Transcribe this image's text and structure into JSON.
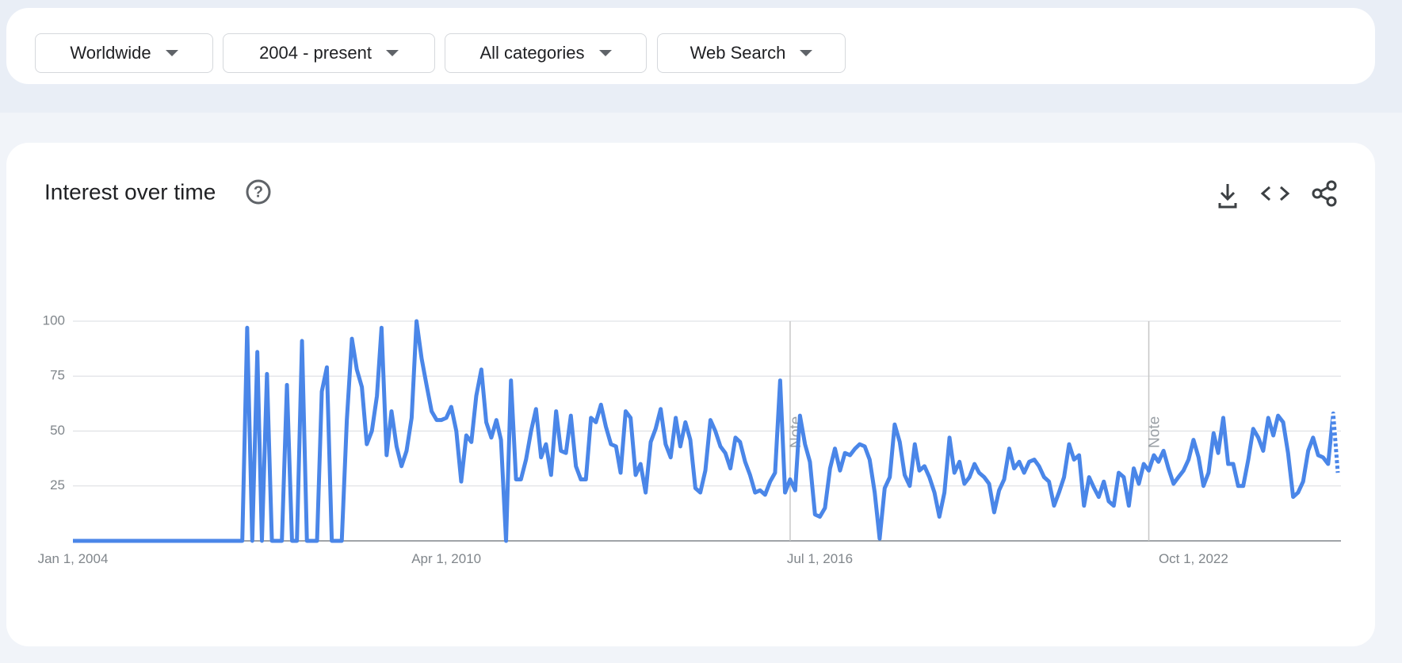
{
  "filters": [
    "Worldwide",
    "2004 - present",
    "All categories",
    "Web Search"
  ],
  "chart_data": {
    "type": "line",
    "title": "Interest over time",
    "color": "#4a86e8",
    "x": [
      "2004-01-01",
      "2004-02-01",
      "2004-03-01",
      "2004-04-01",
      "2004-05-01",
      "2004-06-01",
      "2004-07-01",
      "2004-08-01",
      "2004-09-01",
      "2004-10-01",
      "2004-11-01",
      "2004-12-01",
      "2005-01-01",
      "2005-02-01",
      "2005-03-01",
      "2005-04-01",
      "2005-05-01",
      "2005-06-01",
      "2005-07-01",
      "2005-08-01",
      "2005-09-01",
      "2005-10-01",
      "2005-11-01",
      "2005-12-01",
      "2006-01-01",
      "2006-02-01",
      "2006-03-01",
      "2006-04-01",
      "2006-05-01",
      "2006-06-01",
      "2006-07-01",
      "2006-08-01",
      "2006-09-01",
      "2006-10-01",
      "2006-11-01",
      "2006-12-01",
      "2007-01-01",
      "2007-02-01",
      "2007-03-01",
      "2007-04-01",
      "2007-05-01",
      "2007-06-01",
      "2007-07-01",
      "2007-08-01",
      "2007-09-01",
      "2007-10-01",
      "2007-11-01",
      "2007-12-01",
      "2008-01-01",
      "2008-02-01",
      "2008-03-01",
      "2008-04-01",
      "2008-05-01",
      "2008-06-01",
      "2008-07-01",
      "2008-08-01",
      "2008-09-01",
      "2008-10-01",
      "2008-11-01",
      "2008-12-01",
      "2009-01-01",
      "2009-02-01",
      "2009-03-01",
      "2009-04-01",
      "2009-05-01",
      "2009-06-01",
      "2009-07-01",
      "2009-08-01",
      "2009-09-01",
      "2009-10-01",
      "2009-11-01",
      "2009-12-01",
      "2010-01-01",
      "2010-02-01",
      "2010-03-01",
      "2010-04-01",
      "2010-05-01",
      "2010-06-01",
      "2010-07-01",
      "2010-08-01",
      "2010-09-01",
      "2010-10-01",
      "2010-11-01",
      "2010-12-01",
      "2011-01-01",
      "2011-02-01",
      "2011-03-01",
      "2011-04-01",
      "2011-05-01",
      "2011-06-01",
      "2011-07-01",
      "2011-08-01",
      "2011-09-01",
      "2011-10-01",
      "2011-11-01",
      "2011-12-01",
      "2012-01-01",
      "2012-02-01",
      "2012-03-01",
      "2012-04-01",
      "2012-05-01",
      "2012-06-01",
      "2012-07-01",
      "2012-08-01",
      "2012-09-01",
      "2012-10-01",
      "2012-11-01",
      "2012-12-01",
      "2013-01-01",
      "2013-02-01",
      "2013-03-01",
      "2013-04-01",
      "2013-05-01",
      "2013-06-01",
      "2013-07-01",
      "2013-08-01",
      "2013-09-01",
      "2013-10-01",
      "2013-11-01",
      "2013-12-01",
      "2014-01-01",
      "2014-02-01",
      "2014-03-01",
      "2014-04-01",
      "2014-05-01",
      "2014-06-01",
      "2014-07-01",
      "2014-08-01",
      "2014-09-01",
      "2014-10-01",
      "2014-11-01",
      "2014-12-01",
      "2015-01-01",
      "2015-02-01",
      "2015-03-01",
      "2015-04-01",
      "2015-05-01",
      "2015-06-01",
      "2015-07-01",
      "2015-08-01",
      "2015-09-01",
      "2015-10-01",
      "2015-11-01",
      "2015-12-01",
      "2016-01-01",
      "2016-02-01",
      "2016-03-01",
      "2016-04-01",
      "2016-05-01",
      "2016-06-01",
      "2016-07-01",
      "2016-08-01",
      "2016-09-01",
      "2016-10-01",
      "2016-11-01",
      "2016-12-01",
      "2017-01-01",
      "2017-02-01",
      "2017-03-01",
      "2017-04-01",
      "2017-05-01",
      "2017-06-01",
      "2017-07-01",
      "2017-08-01",
      "2017-09-01",
      "2017-10-01",
      "2017-11-01",
      "2017-12-01",
      "2018-01-01",
      "2018-02-01",
      "2018-03-01",
      "2018-04-01",
      "2018-05-01",
      "2018-06-01",
      "2018-07-01",
      "2018-08-01",
      "2018-09-01",
      "2018-10-01",
      "2018-11-01",
      "2018-12-01",
      "2019-01-01",
      "2019-02-01",
      "2019-03-01",
      "2019-04-01",
      "2019-05-01",
      "2019-06-01",
      "2019-07-01",
      "2019-08-01",
      "2019-09-01",
      "2019-10-01",
      "2019-11-01",
      "2019-12-01",
      "2020-01-01",
      "2020-02-01",
      "2020-03-01",
      "2020-04-01",
      "2020-05-01",
      "2020-06-01",
      "2020-07-01",
      "2020-08-01",
      "2020-09-01",
      "2020-10-01",
      "2020-11-01",
      "2020-12-01",
      "2021-01-01",
      "2021-02-01",
      "2021-03-01",
      "2021-04-01",
      "2021-05-01",
      "2021-06-01",
      "2021-07-01",
      "2021-08-01",
      "2021-09-01",
      "2021-10-01",
      "2021-11-01",
      "2021-12-01",
      "2022-01-01",
      "2022-02-01",
      "2022-03-01",
      "2022-04-01",
      "2022-05-01",
      "2022-06-01",
      "2022-07-01",
      "2022-08-01",
      "2022-09-01",
      "2022-10-01",
      "2022-11-01",
      "2022-12-01",
      "2023-01-01",
      "2023-02-01",
      "2023-03-01",
      "2023-04-01",
      "2023-05-01",
      "2023-06-01",
      "2023-07-01",
      "2023-08-01",
      "2023-09-01",
      "2023-10-01",
      "2023-11-01",
      "2023-12-01",
      "2024-01-01",
      "2024-02-01",
      "2024-03-01",
      "2024-04-01",
      "2024-05-01",
      "2024-06-01",
      "2024-07-01",
      "2024-08-01",
      "2024-09-01",
      "2024-10-01",
      "2024-11-01",
      "2024-12-01",
      "2025-01-01",
      "2025-02-01",
      "2025-03-01"
    ],
    "values": [
      0,
      0,
      0,
      0,
      0,
      0,
      0,
      0,
      0,
      0,
      0,
      0,
      0,
      0,
      0,
      0,
      0,
      0,
      0,
      0,
      0,
      0,
      0,
      0,
      0,
      0,
      0,
      0,
      0,
      0,
      0,
      0,
      0,
      0,
      0,
      97,
      0,
      86,
      0,
      76,
      0,
      0,
      0,
      71,
      0,
      0,
      91,
      0,
      0,
      0,
      68,
      79,
      0,
      0,
      0,
      55,
      92,
      78,
      70,
      44,
      50,
      66,
      97,
      39,
      59,
      43,
      34,
      41,
      56,
      100,
      83,
      71,
      59,
      55,
      55,
      56,
      61,
      50,
      27,
      48,
      45,
      66,
      78,
      54,
      47,
      55,
      46,
      0,
      73,
      28,
      28,
      37,
      50,
      60,
      38,
      44,
      30,
      59,
      41,
      40,
      57,
      34,
      28,
      28,
      56,
      54,
      62,
      52,
      44,
      43,
      31,
      59,
      56,
      30,
      35,
      22,
      45,
      51,
      60,
      44,
      38,
      56,
      43,
      54,
      46,
      24,
      22,
      32,
      55,
      50,
      43,
      40,
      33,
      47,
      45,
      36,
      30,
      22,
      23,
      21,
      27,
      31,
      73,
      22,
      28,
      23,
      57,
      44,
      36,
      12,
      11,
      15,
      33,
      42,
      32,
      40,
      39,
      42,
      44,
      43,
      37,
      22,
      1,
      24,
      29,
      53,
      45,
      30,
      25,
      44,
      32,
      34,
      29,
      22,
      11,
      22,
      47,
      31,
      36,
      26,
      29,
      35,
      31,
      29,
      26,
      13,
      23,
      28,
      42,
      33,
      36,
      31,
      36,
      37,
      34,
      29,
      27,
      16,
      22,
      29,
      44,
      37,
      39,
      16,
      29,
      24,
      20,
      27,
      18,
      16,
      31,
      29,
      16,
      33,
      26,
      35,
      32,
      39,
      36,
      41,
      33,
      26,
      29,
      32,
      37,
      46,
      38,
      25,
      31,
      49,
      40,
      56,
      35,
      35,
      25,
      25,
      37,
      51,
      47,
      41,
      56,
      48,
      57,
      54,
      40,
      20,
      22,
      27,
      41,
      47,
      39,
      38,
      35,
      58,
      31
    ],
    "xlim": [
      "2004-01-01",
      "2025-03-01"
    ],
    "xticks": [
      {
        "value": "2004-01-01",
        "label": "Jan 1, 2004"
      },
      {
        "value": "2010-04-01",
        "label": "Apr 1, 2010"
      },
      {
        "value": "2016-07-01",
        "label": "Jul 1, 2016"
      },
      {
        "value": "2022-10-01",
        "label": "Oct 1, 2022"
      }
    ],
    "ylim": [
      0,
      100
    ],
    "yticks": [
      25,
      50,
      75,
      100
    ],
    "grid": true,
    "annotations": [
      {
        "x": "2016-01-01",
        "label": "Note"
      },
      {
        "x": "2022-01-01",
        "label": "Note"
      }
    ]
  }
}
